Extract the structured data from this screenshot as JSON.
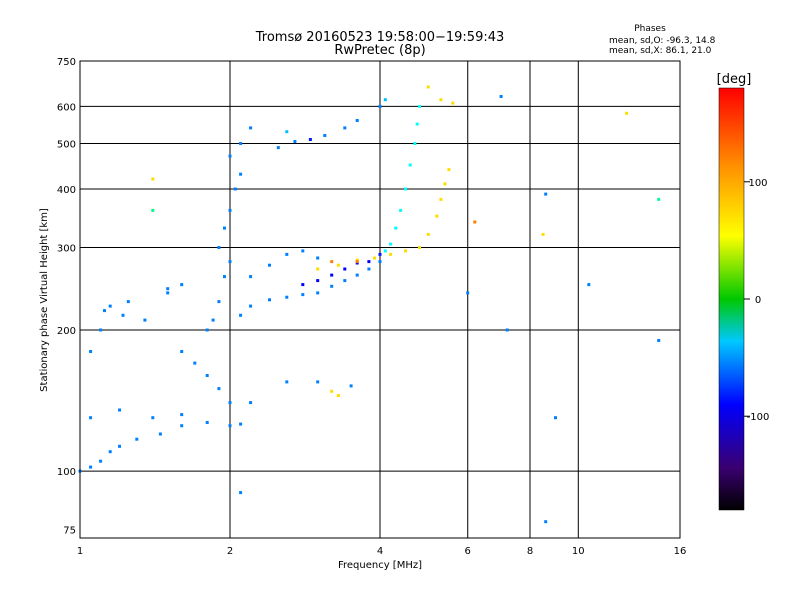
{
  "chart_data": {
    "type": "scatter",
    "title": "Tromsø 20160523 19:58:00−19:59:43",
    "subtitle": "RwPretec (8p)",
    "stats": {
      "heading": "Phases",
      "line_o": "mean, sd,O: -96.3, 14.8",
      "line_x": "mean, sd,X: 86.1, 21.0"
    },
    "xlabel": "Frequency [MHz]",
    "ylabel": "Stationary phase Virtual Height [km]",
    "x_scale": "log",
    "y_scale": "log",
    "xlim": [
      1,
      16
    ],
    "ylim": [
      72,
      750
    ],
    "x_ticks": [
      1,
      2,
      4,
      6,
      8,
      10,
      16
    ],
    "y_ticks": [
      75,
      100,
      200,
      300,
      400,
      500,
      600,
      750
    ],
    "x_grid": [
      2,
      4,
      6,
      8,
      10
    ],
    "y_grid": [
      100,
      200,
      300,
      400,
      500,
      600
    ],
    "grid": true,
    "colorbar": {
      "label": "[deg]",
      "ticks": [
        100,
        0,
        -100
      ],
      "range": [
        -180,
        180
      ],
      "position": "right"
    },
    "series": [
      {
        "points": [
          [
            1.0,
            100,
            -100
          ],
          [
            1.05,
            102,
            -100
          ],
          [
            1.1,
            105,
            -100
          ],
          [
            1.15,
            110,
            -100
          ],
          [
            1.2,
            113,
            -100
          ],
          [
            1.3,
            117,
            -100
          ],
          [
            1.45,
            120,
            -100
          ],
          [
            1.6,
            125,
            -100
          ],
          [
            1.8,
            127,
            -100
          ],
          [
            2.0,
            125,
            -100
          ],
          [
            2.1,
            126,
            -100
          ],
          [
            1.05,
            130,
            -100
          ],
          [
            1.2,
            135,
            -100
          ],
          [
            1.4,
            130,
            -100
          ],
          [
            1.6,
            132,
            -100
          ],
          [
            1.05,
            180,
            -100
          ],
          [
            1.1,
            200,
            -100
          ],
          [
            1.12,
            220,
            -100
          ],
          [
            1.15,
            225,
            -100
          ],
          [
            1.22,
            215,
            -100
          ],
          [
            1.25,
            230,
            -100
          ],
          [
            1.35,
            210,
            -100
          ],
          [
            1.5,
            240,
            -100
          ],
          [
            1.5,
            245,
            -100
          ],
          [
            1.6,
            250,
            -100
          ],
          [
            1.6,
            180,
            -100
          ],
          [
            1.7,
            170,
            -100
          ],
          [
            1.8,
            160,
            -100
          ],
          [
            1.9,
            150,
            -100
          ],
          [
            2.0,
            140,
            -100
          ],
          [
            2.2,
            140,
            -100
          ],
          [
            1.8,
            200,
            -100
          ],
          [
            1.85,
            210,
            -100
          ],
          [
            1.9,
            230,
            -100
          ],
          [
            1.95,
            260,
            -100
          ],
          [
            2.0,
            280,
            -100
          ],
          [
            1.9,
            300,
            -100
          ],
          [
            1.95,
            330,
            -100
          ],
          [
            2.0,
            360,
            -100
          ],
          [
            2.05,
            400,
            -100
          ],
          [
            2.1,
            430,
            -100
          ],
          [
            2.0,
            470,
            -100
          ],
          [
            2.1,
            500,
            -100
          ],
          [
            2.2,
            540,
            -100
          ],
          [
            2.1,
            215,
            -100
          ],
          [
            2.2,
            225,
            -100
          ],
          [
            2.4,
            232,
            -100
          ],
          [
            2.6,
            235,
            -100
          ],
          [
            2.8,
            238,
            -100
          ],
          [
            3.0,
            240,
            -100
          ],
          [
            3.2,
            248,
            -100
          ],
          [
            3.4,
            255,
            -100
          ],
          [
            3.6,
            262,
            -100
          ],
          [
            3.8,
            270,
            -100
          ],
          [
            4.0,
            280,
            -100
          ],
          [
            2.2,
            260,
            -100
          ],
          [
            2.4,
            275,
            -100
          ],
          [
            2.6,
            290,
            -100
          ],
          [
            2.8,
            295,
            -100
          ],
          [
            3.0,
            285,
            -100
          ],
          [
            2.8,
            250,
            -140
          ],
          [
            3.0,
            255,
            -140
          ],
          [
            3.2,
            262,
            -140
          ],
          [
            3.4,
            270,
            -140
          ],
          [
            3.6,
            278,
            -140
          ],
          [
            3.8,
            280,
            -140
          ],
          [
            4.0,
            290,
            -130
          ],
          [
            4.1,
            295,
            -60
          ],
          [
            4.2,
            305,
            -60
          ],
          [
            4.3,
            330,
            -60
          ],
          [
            4.4,
            360,
            -60
          ],
          [
            4.5,
            400,
            -60
          ],
          [
            4.6,
            450,
            -60
          ],
          [
            4.7,
            500,
            -60
          ],
          [
            4.75,
            550,
            -60
          ],
          [
            4.8,
            600,
            -60
          ],
          [
            4.1,
            620,
            -80
          ],
          [
            2.5,
            490,
            -100
          ],
          [
            2.7,
            505,
            -100
          ],
          [
            2.9,
            510,
            -130
          ],
          [
            3.1,
            520,
            -100
          ],
          [
            3.4,
            540,
            -100
          ],
          [
            3.6,
            560,
            -100
          ],
          [
            4.0,
            600,
            -100
          ],
          [
            2.6,
            530,
            -80
          ],
          [
            2.6,
            155,
            -100
          ],
          [
            3.0,
            155,
            -100
          ],
          [
            3.5,
            152,
            -100
          ],
          [
            3.0,
            270,
            110
          ],
          [
            3.3,
            275,
            110
          ],
          [
            3.6,
            282,
            110
          ],
          [
            3.9,
            285,
            110
          ],
          [
            4.2,
            290,
            110
          ],
          [
            4.5,
            295,
            110
          ],
          [
            4.8,
            300,
            110
          ],
          [
            5.0,
            320,
            110
          ],
          [
            5.2,
            350,
            110
          ],
          [
            5.3,
            380,
            110
          ],
          [
            5.4,
            410,
            110
          ],
          [
            5.5,
            440,
            110
          ],
          [
            3.2,
            148,
            110
          ],
          [
            3.3,
            145,
            110
          ],
          [
            7.0,
            630,
            -100
          ],
          [
            5.3,
            620,
            110
          ],
          [
            5.6,
            610,
            110
          ],
          [
            6.2,
            340,
            140
          ],
          [
            8.5,
            320,
            110
          ],
          [
            10.5,
            250,
            -100
          ],
          [
            12.5,
            580,
            110
          ],
          [
            14.5,
            380,
            -30
          ],
          [
            14.5,
            190,
            -100
          ],
          [
            8.6,
            390,
            -100
          ],
          [
            9.0,
            130,
            -100
          ],
          [
            8.6,
            78,
            -100
          ],
          [
            7.2,
            200,
            -100
          ],
          [
            6.0,
            240,
            -100
          ],
          [
            1.4,
            420,
            110
          ],
          [
            1.4,
            360,
            -20
          ],
          [
            2.1,
            90,
            -100
          ],
          [
            3.2,
            280,
            140
          ],
          [
            3.6,
            280,
            140
          ],
          [
            5.0,
            660,
            110
          ]
        ]
      }
    ]
  }
}
